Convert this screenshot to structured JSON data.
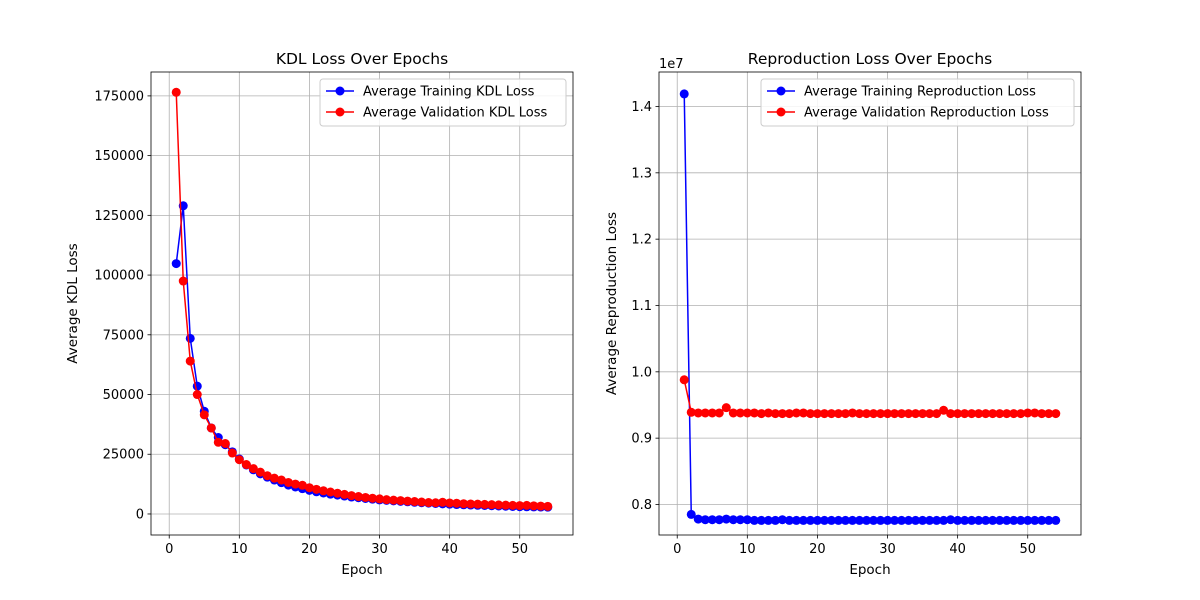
{
  "colors": {
    "training": "#0000ff",
    "validation": "#ff0000",
    "grid": "#b0b0b0",
    "axis": "#000000"
  },
  "chart_data": [
    {
      "type": "line",
      "title": "KDL Loss Over Epochs",
      "xlabel": "Epoch",
      "ylabel": "Average KDL Loss",
      "xlim": [
        -2.6,
        57.6
      ],
      "ylim": [
        -8800,
        185000
      ],
      "xticks": [
        0,
        10,
        20,
        30,
        40,
        50
      ],
      "yticks": [
        0,
        25000,
        50000,
        75000,
        100000,
        125000,
        150000,
        175000
      ],
      "ytick_labels": [
        "0",
        "25000",
        "50000",
        "75000",
        "100000",
        "125000",
        "150000",
        "175000"
      ],
      "offset_label": "",
      "grid": true,
      "legend_location": "upper right",
      "x": [
        1,
        2,
        3,
        4,
        5,
        6,
        7,
        8,
        9,
        10,
        11,
        12,
        13,
        14,
        15,
        16,
        17,
        18,
        19,
        20,
        21,
        22,
        23,
        24,
        25,
        26,
        27,
        28,
        29,
        30,
        31,
        32,
        33,
        34,
        35,
        36,
        37,
        38,
        39,
        40,
        41,
        42,
        43,
        44,
        45,
        46,
        47,
        48,
        49,
        50,
        51,
        52,
        53,
        54
      ],
      "series": [
        {
          "name": "Average Training KDL Loss",
          "color": "#0000ff",
          "values": [
            104800,
            129000,
            73500,
            53500,
            43000,
            36000,
            32000,
            29000,
            26000,
            23000,
            20500,
            18500,
            16800,
            15400,
            14200,
            13100,
            12100,
            11300,
            10600,
            9900,
            9300,
            8800,
            8300,
            7900,
            7500,
            7100,
            6800,
            6500,
            6200,
            5900,
            5700,
            5500,
            5300,
            5100,
            4900,
            4700,
            4550,
            4400,
            4250,
            4100,
            3950,
            3850,
            3750,
            3650,
            3550,
            3450,
            3350,
            3250,
            3150,
            3050,
            3000,
            2950,
            2900,
            2850
          ]
        },
        {
          "name": "Average Validation KDL Loss",
          "color": "#ff0000",
          "values": [
            176500,
            97500,
            64000,
            50000,
            41500,
            36000,
            30000,
            29500,
            25500,
            22700,
            20700,
            19000,
            17500,
            16000,
            15000,
            14200,
            13200,
            12500,
            12000,
            11000,
            10300,
            9700,
            9200,
            8700,
            8200,
            7700,
            7300,
            6900,
            6600,
            6300,
            6000,
            5800,
            5600,
            5400,
            5200,
            5000,
            4800,
            4700,
            4900,
            4600,
            4500,
            4300,
            4200,
            4100,
            4000,
            3900,
            3800,
            3700,
            3600,
            3500,
            3600,
            3400,
            3300,
            3200
          ]
        }
      ]
    },
    {
      "type": "line",
      "title": "Reproduction Loss Over Epochs",
      "xlabel": "Epoch",
      "ylabel": "Average Reproduction Loss",
      "xlim": [
        -2.6,
        57.6
      ],
      "ylim": [
        7540000,
        14520000
      ],
      "xticks": [
        0,
        10,
        20,
        30,
        40,
        50
      ],
      "yticks": [
        8000000,
        9000000,
        10000000,
        11000000,
        12000000,
        13000000,
        14000000
      ],
      "ytick_labels": [
        "0.8",
        "0.9",
        "1.0",
        "1.1",
        "1.2",
        "1.3",
        "1.4"
      ],
      "offset_label": "1e7",
      "grid": true,
      "legend_location": "upper right",
      "x": [
        1,
        2,
        3,
        4,
        5,
        6,
        7,
        8,
        9,
        10,
        11,
        12,
        13,
        14,
        15,
        16,
        17,
        18,
        19,
        20,
        21,
        22,
        23,
        24,
        25,
        26,
        27,
        28,
        29,
        30,
        31,
        32,
        33,
        34,
        35,
        36,
        37,
        38,
        39,
        40,
        41,
        42,
        43,
        44,
        45,
        46,
        47,
        48,
        49,
        50,
        51,
        52,
        53,
        54
      ],
      "series": [
        {
          "name": "Average Training Reproduction Loss",
          "color": "#0000ff",
          "values": [
            14190000,
            7850000,
            7780000,
            7770000,
            7770000,
            7770000,
            7780000,
            7770000,
            7770000,
            7770000,
            7760000,
            7760000,
            7760000,
            7760000,
            7770000,
            7760000,
            7760000,
            7760000,
            7760000,
            7760000,
            7760000,
            7760000,
            7760000,
            7760000,
            7760000,
            7760000,
            7760000,
            7760000,
            7760000,
            7760000,
            7760000,
            7760000,
            7760000,
            7760000,
            7760000,
            7760000,
            7760000,
            7760000,
            7770000,
            7760000,
            7760000,
            7760000,
            7760000,
            7760000,
            7760000,
            7760000,
            7760000,
            7760000,
            7760000,
            7760000,
            7760000,
            7760000,
            7760000,
            7760000
          ]
        },
        {
          "name": "Average Validation Reproduction Loss",
          "color": "#ff0000",
          "values": [
            9880000,
            9390000,
            9380000,
            9380000,
            9380000,
            9380000,
            9460000,
            9380000,
            9380000,
            9380000,
            9380000,
            9370000,
            9380000,
            9370000,
            9370000,
            9370000,
            9380000,
            9380000,
            9370000,
            9370000,
            9370000,
            9370000,
            9370000,
            9370000,
            9380000,
            9370000,
            9370000,
            9370000,
            9370000,
            9370000,
            9370000,
            9370000,
            9370000,
            9370000,
            9370000,
            9370000,
            9370000,
            9420000,
            9370000,
            9370000,
            9370000,
            9370000,
            9370000,
            9370000,
            9370000,
            9370000,
            9370000,
            9370000,
            9370000,
            9380000,
            9380000,
            9370000,
            9370000,
            9370000
          ]
        }
      ]
    }
  ]
}
